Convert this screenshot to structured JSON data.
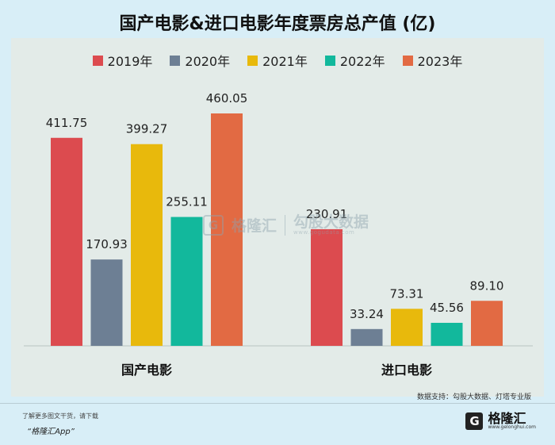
{
  "chart_data": {
    "type": "bar",
    "title": "国产电影&进口电影年度票房总产值 (亿)",
    "categories": [
      "国产电影",
      "进口电影"
    ],
    "series": [
      {
        "name": "2019年",
        "color": "#dc4b4f",
        "values": [
          411.75,
          230.91
        ],
        "labels": [
          "411.75",
          "230.91"
        ]
      },
      {
        "name": "2020年",
        "color": "#6d7f94",
        "values": [
          170.93,
          33.24
        ],
        "labels": [
          "170.93",
          "33.24"
        ]
      },
      {
        "name": "2021年",
        "color": "#e8b90c",
        "values": [
          399.27,
          73.31
        ],
        "labels": [
          "399.27",
          "73.31"
        ]
      },
      {
        "name": "2022年",
        "color": "#12b89c",
        "values": [
          255.11,
          45.56
        ],
        "labels": [
          "255.11",
          "45.56"
        ]
      },
      {
        "name": "2023年",
        "color": "#e26a43",
        "values": [
          460.05,
          89.1
        ],
        "labels": [
          "460.05",
          "89.10"
        ]
      }
    ],
    "ylim": [
      0,
      460.05
    ],
    "legend_position": "top-center",
    "grid": false
  },
  "watermark": {
    "brand": "格隆汇",
    "partner": "勾股大数据",
    "partner_sub": "www.gogudata.com"
  },
  "source": "数据支持：勾股大数据、灯塔专业版",
  "footer": {
    "line1": "了解更多图文干货，请下载",
    "line2": "“格隆汇App”"
  },
  "brand": {
    "logo_letter": "G",
    "name": "格隆汇",
    "sub": "www.gelonghui.com"
  }
}
